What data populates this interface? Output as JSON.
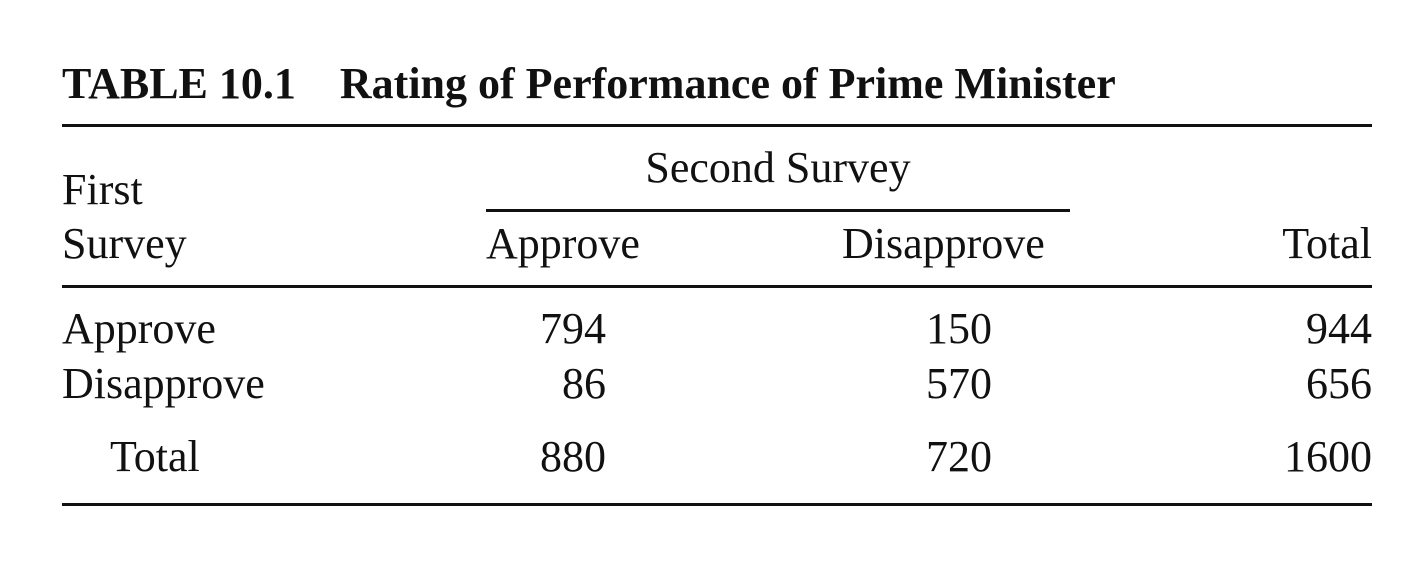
{
  "table": {
    "caption_number": "TABLE 10.1",
    "caption_title": "Rating of Performance of Prime Minister",
    "row_header_line1": "First",
    "row_header_line2": "Survey",
    "spanner": "Second Survey",
    "columns": [
      "Approve",
      "Disapprove",
      "Total"
    ],
    "rows": [
      {
        "label": "Approve",
        "values": [
          "794",
          "150",
          "944"
        ]
      },
      {
        "label": "Disapprove",
        "values": [
          "86",
          "570",
          "656"
        ]
      },
      {
        "label": "Total",
        "values": [
          "880",
          "720",
          "1600"
        ]
      }
    ]
  }
}
